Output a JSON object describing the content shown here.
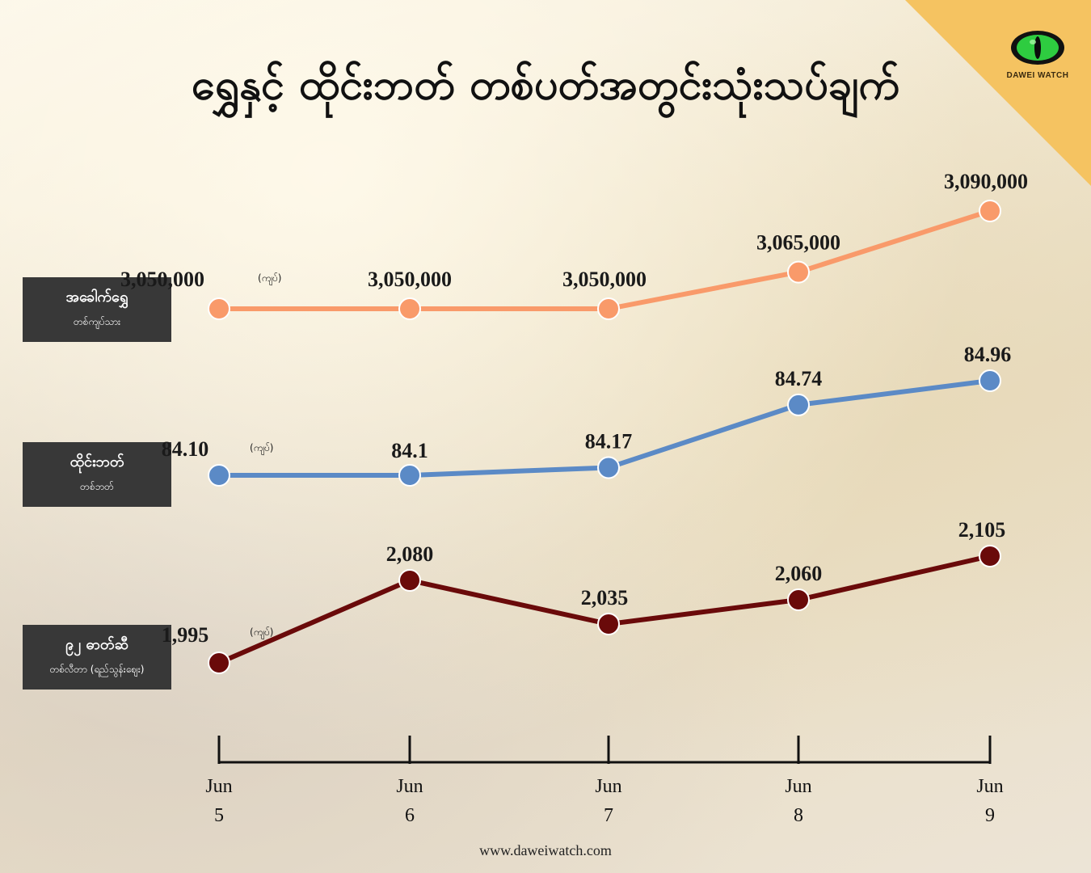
{
  "title": "ရွှေနှင့် ထိုင်းဘတ် တစ်ပတ်အတွင်းသုံးသပ်ချက်",
  "logo": {
    "text": "DAWEI WATCH",
    "icon": "eye-icon"
  },
  "footer": "www.daweiwatch.com",
  "unit_label": "(ကျပ်)",
  "colors": {
    "gold": "#f99a6a",
    "baht": "#5b8ac6",
    "fuel": "#6a0a0a",
    "accent": "#f5c361"
  },
  "series_labels": [
    {
      "name": "အခေါက်ရွှေ",
      "sub": "တစ်ကျပ်သား"
    },
    {
      "name": "ထိုင်းဘတ်",
      "sub": "တစ်ဘတ်"
    },
    {
      "name": "၉၂ ဓာတ်ဆီ",
      "sub": "တစ်လီတာ (ရည်သွန်းဈေး)"
    }
  ],
  "chart_data": {
    "type": "line",
    "x": [
      "Jun 5",
      "Jun 6",
      "Jun 7",
      "Jun 8",
      "Jun 9"
    ],
    "x_month": [
      "Jun",
      "Jun",
      "Jun",
      "Jun",
      "Jun"
    ],
    "x_day": [
      "5",
      "6",
      "7",
      "8",
      "9"
    ],
    "series": [
      {
        "name": "အခေါက်ရွှေ",
        "values": [
          3050000,
          3050000,
          3050000,
          3065000,
          3090000
        ],
        "labels": [
          "3,050,000",
          "3,050,000",
          "3,050,000",
          "3,065,000",
          "3,090,000"
        ]
      },
      {
        "name": "ထိုင်းဘတ်",
        "values": [
          84.1,
          84.1,
          84.17,
          84.74,
          84.96
        ],
        "labels": [
          "84.10",
          "84.1",
          "84.17",
          "84.74",
          "84.96"
        ]
      },
      {
        "name": "၉၂ ဓာတ်ဆီ",
        "values": [
          1995,
          2080,
          2035,
          2060,
          2105
        ],
        "labels": [
          "1,995",
          "2,080",
          "2,035",
          "2,060",
          "2,105"
        ]
      }
    ]
  }
}
